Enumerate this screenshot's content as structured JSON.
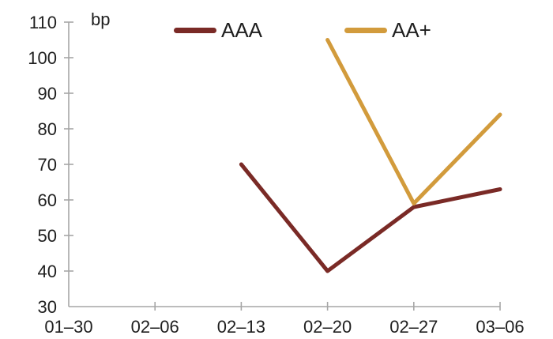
{
  "chart_data": {
    "type": "line",
    "title": "",
    "unit_label": "bp",
    "categories": [
      "01–30",
      "02–06",
      "02–13",
      "02–20",
      "02–27",
      "03–06"
    ],
    "series": [
      {
        "name": "AAA",
        "color": "#7A2A26",
        "values": [
          null,
          null,
          70,
          40,
          58,
          63
        ]
      },
      {
        "name": "AA+",
        "color": "#D29B3C",
        "values": [
          null,
          null,
          null,
          105,
          59,
          84
        ]
      }
    ],
    "ylim": [
      30,
      110
    ],
    "yticks": [
      30,
      40,
      50,
      60,
      70,
      80,
      90,
      100,
      110
    ],
    "xlabel": "",
    "ylabel": "bp",
    "grid": false,
    "legend_position": "top-center",
    "axis_color": "#A6A6A6",
    "text_color": "#1F1F1F",
    "background": "#FFFFFF"
  }
}
